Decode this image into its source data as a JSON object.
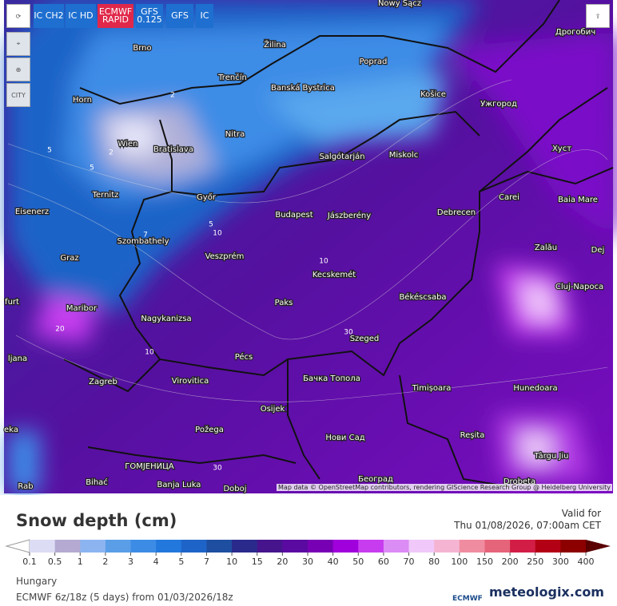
{
  "toolbar": {
    "buttons": [
      "IC CH2",
      "IC HD",
      "ECMWF RAPID",
      "GFS 0.125",
      "GFS",
      "IC"
    ],
    "side": [
      "CITY"
    ]
  },
  "map": {
    "cities": [
      "Nowy Sącz",
      "Brno",
      "Žilina",
      "Poprad",
      "Дрогобич",
      "Trenčín",
      "Banská Bystrica",
      "Košice",
      "Ужгород",
      "Horn",
      "Wien",
      "Bratislava",
      "Nitra",
      "Salgótarján",
      "Miskolc",
      "Хуст",
      "Ternitz",
      "Győr",
      "Carei",
      "Baia Mare",
      "Eisenerz",
      "Budapest",
      "Jászberény",
      "Debrecen",
      "Szombathely",
      "Zalău",
      "Graz",
      "Veszprém",
      "Dej",
      "Kecskemét",
      "Cluj-Napoca",
      "Paks",
      "Békéscsaba",
      "furt",
      "Maribor",
      "Nagykanizsa",
      "Szeged",
      "ljana",
      "Pécs",
      "Бачка Топола",
      "Zagreb",
      "Virovitica",
      "Timișoara",
      "Hunedoara",
      "Osijek",
      "Požega",
      "Нови Сад",
      "Reșita",
      "eka",
      "Târgu Jiu",
      "ГОМЈЕНИЦА",
      "Bihać",
      "Banja Luka",
      "Doboj",
      "Београд",
      "Drobeta",
      "Rab"
    ],
    "contour_labels": [
      "2",
      "2",
      "5",
      "5",
      "5",
      "7",
      "10",
      "10",
      "10",
      "20",
      "30",
      "30"
    ],
    "attribution": "Map data © OpenStreetMap contributors, rendering GIScience Research Group @ Heidelberg University"
  },
  "legend": {
    "title": "Snow depth (cm)",
    "valid_label": "Valid for",
    "valid_time": "Thu 01/08/2026, 07:00am CET",
    "ticks": [
      "0.1",
      "0.5",
      "1",
      "2",
      "3",
      "4",
      "5",
      "7",
      "10",
      "15",
      "20",
      "30",
      "40",
      "50",
      "60",
      "70",
      "80",
      "100",
      "150",
      "200",
      "250",
      "300",
      "400"
    ],
    "colors": [
      "#dcdcf5",
      "#b4aad2",
      "#8cb4f0",
      "#5a9ee8",
      "#3c8ce6",
      "#2278dc",
      "#1e64c8",
      "#1e4ea0",
      "#2a2a8c",
      "#46148c",
      "#5a0aa0",
      "#7800b4",
      "#a000dc",
      "#c83cf0",
      "#dc8cf5",
      "#f0c8fa",
      "#f5b4d2",
      "#f08ca0",
      "#e6647a",
      "#d21e46",
      "#b40014",
      "#8c0000"
    ],
    "under_color": "#ffffff",
    "over_color": "#5a0000"
  },
  "footer": {
    "region": "Hungary",
    "run": "ECMWF 6z/18z (5 days) from 01/03/2026/18z",
    "brand_small": "ECMWF",
    "brand": "meteologix.com"
  }
}
